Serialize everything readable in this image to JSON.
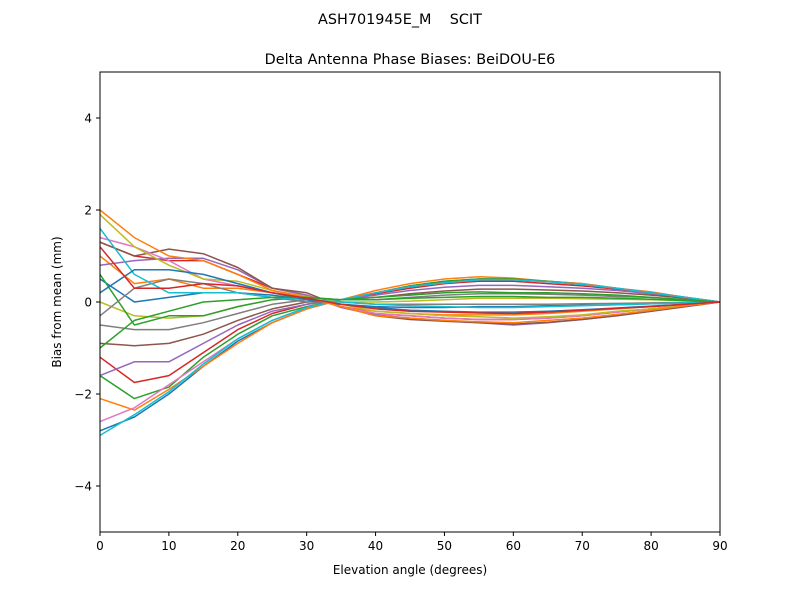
{
  "chart_data": {
    "type": "line",
    "suptitle": "ASH701945E_M    SCIT",
    "title": "Delta Antenna Phase Biases: BeiDOU-E6",
    "xlabel": "Elevation angle (degrees)",
    "ylabel": "Bias from mean (mm)",
    "xlim": [
      0,
      90
    ],
    "ylim": [
      -5,
      5
    ],
    "xticks": [
      0,
      10,
      20,
      30,
      40,
      50,
      60,
      70,
      80,
      90
    ],
    "yticks": [
      -4,
      -2,
      0,
      2,
      4
    ],
    "ytick_labels": [
      "−4",
      "−2",
      "0",
      "2",
      "4"
    ],
    "grid": false,
    "legend": "none",
    "colors": [
      "#1f77b4",
      "#ff7f0e",
      "#2ca02c",
      "#d62728",
      "#9467bd",
      "#8c564b",
      "#e377c2",
      "#7f7f7f",
      "#bcbd22",
      "#17becf"
    ],
    "x": [
      0,
      5,
      10,
      15,
      20,
      25,
      30,
      35,
      40,
      45,
      50,
      55,
      60,
      65,
      70,
      75,
      80,
      85,
      90
    ],
    "series": [
      {
        "values": [
          -2.8,
          -2.5,
          -2.0,
          -1.4,
          -0.85,
          -0.45,
          -0.15,
          0.05,
          0.2,
          0.35,
          0.45,
          0.5,
          0.5,
          0.45,
          0.4,
          0.3,
          0.2,
          0.1,
          0
        ]
      },
      {
        "values": [
          -2.1,
          -2.35,
          -1.9,
          -1.4,
          -0.9,
          -0.45,
          -0.15,
          0.05,
          0.25,
          0.4,
          0.5,
          0.55,
          0.52,
          0.45,
          0.4,
          0.3,
          0.22,
          0.1,
          0
        ]
      },
      {
        "values": [
          -1.6,
          -2.1,
          -1.85,
          -1.2,
          -0.7,
          -0.3,
          -0.1,
          0.05,
          0.2,
          0.35,
          0.45,
          0.5,
          0.5,
          0.45,
          0.38,
          0.3,
          0.2,
          0.1,
          0
        ]
      },
      {
        "values": [
          -1.2,
          -1.75,
          -1.6,
          -1.1,
          -0.6,
          -0.25,
          -0.05,
          0.05,
          0.18,
          0.3,
          0.4,
          0.45,
          0.45,
          0.4,
          0.35,
          0.28,
          0.2,
          0.1,
          0
        ]
      },
      {
        "values": [
          -1.6,
          -1.3,
          -1.3,
          -0.9,
          -0.5,
          -0.2,
          -0.05,
          0.05,
          0.15,
          0.25,
          0.32,
          0.36,
          0.36,
          0.33,
          0.3,
          0.25,
          0.18,
          0.09,
          0
        ]
      },
      {
        "values": [
          -0.9,
          -0.95,
          -0.9,
          -0.7,
          -0.4,
          -0.15,
          0.0,
          0.05,
          0.1,
          0.18,
          0.24,
          0.28,
          0.28,
          0.26,
          0.24,
          0.2,
          0.15,
          0.08,
          0
        ]
      },
      {
        "values": [
          -2.6,
          -2.3,
          -1.8,
          -1.3,
          -0.8,
          -0.4,
          -0.12,
          0.05,
          0.2,
          0.33,
          0.42,
          0.48,
          0.48,
          0.44,
          0.38,
          0.3,
          0.2,
          0.1,
          0
        ]
      },
      {
        "values": [
          -0.5,
          -0.6,
          -0.6,
          -0.45,
          -0.25,
          -0.05,
          0.05,
          0.05,
          0.05,
          0.1,
          0.15,
          0.18,
          0.18,
          0.17,
          0.15,
          0.12,
          0.1,
          0.05,
          0
        ]
      },
      {
        "values": [
          0.0,
          -0.3,
          -0.35,
          -0.3,
          -0.1,
          0.05,
          0.1,
          0.0,
          0.0,
          0.02,
          0.05,
          0.08,
          0.08,
          0.08,
          0.07,
          0.06,
          0.05,
          0.03,
          0
        ]
      },
      {
        "values": [
          -2.9,
          -2.45,
          -1.95,
          -1.35,
          -0.8,
          -0.4,
          -0.12,
          0.05,
          0.2,
          0.33,
          0.42,
          0.48,
          0.48,
          0.44,
          0.38,
          0.3,
          0.2,
          0.1,
          0
        ]
      },
      {
        "values": [
          0.5,
          0.0,
          0.1,
          0.2,
          0.2,
          0.15,
          0.05,
          -0.05,
          -0.1,
          -0.12,
          -0.12,
          -0.1,
          -0.1,
          -0.08,
          -0.07,
          -0.06,
          -0.04,
          -0.02,
          0
        ]
      },
      {
        "values": [
          1.0,
          0.4,
          0.5,
          0.3,
          0.3,
          0.2,
          0.1,
          -0.1,
          -0.2,
          -0.25,
          -0.28,
          -0.28,
          -0.28,
          -0.25,
          -0.2,
          -0.15,
          -0.1,
          -0.05,
          0
        ]
      },
      {
        "values": [
          0.6,
          -0.5,
          -0.3,
          -0.3,
          -0.1,
          0.05,
          0.1,
          0.05,
          0.1,
          0.15,
          0.2,
          0.22,
          0.2,
          0.2,
          0.18,
          0.15,
          0.1,
          0.05,
          0
        ]
      },
      {
        "values": [
          1.3,
          1.0,
          0.9,
          0.9,
          0.6,
          0.3,
          0.15,
          -0.1,
          -0.25,
          -0.3,
          -0.35,
          -0.38,
          -0.38,
          -0.35,
          -0.3,
          -0.22,
          -0.15,
          -0.07,
          0
        ]
      },
      {
        "values": [
          0.8,
          0.9,
          0.95,
          0.95,
          0.7,
          0.3,
          0.15,
          -0.12,
          -0.28,
          -0.35,
          -0.4,
          -0.45,
          -0.5,
          -0.45,
          -0.38,
          -0.3,
          -0.2,
          -0.1,
          0
        ]
      },
      {
        "values": [
          1.3,
          1.0,
          1.15,
          1.05,
          0.75,
          0.3,
          0.2,
          -0.1,
          -0.3,
          -0.38,
          -0.42,
          -0.45,
          -0.48,
          -0.44,
          -0.38,
          -0.3,
          -0.2,
          -0.1,
          0
        ]
      },
      {
        "values": [
          1.4,
          1.2,
          0.9,
          0.5,
          0.35,
          0.2,
          0.1,
          -0.1,
          -0.25,
          -0.3,
          -0.35,
          -0.38,
          -0.38,
          -0.35,
          -0.3,
          -0.22,
          -0.15,
          -0.07,
          0
        ]
      },
      {
        "values": [
          -0.3,
          0.3,
          0.5,
          0.4,
          0.2,
          0.1,
          0.0,
          0.0,
          -0.05,
          -0.05,
          -0.05,
          -0.05,
          -0.05,
          -0.05,
          -0.04,
          -0.03,
          -0.02,
          -0.01,
          0
        ]
      },
      {
        "values": [
          1.9,
          1.2,
          0.8,
          0.5,
          0.45,
          0.25,
          0.12,
          -0.05,
          -0.2,
          -0.25,
          -0.3,
          -0.32,
          -0.35,
          -0.32,
          -0.28,
          -0.2,
          -0.15,
          -0.07,
          0
        ]
      },
      {
        "values": [
          1.6,
          0.6,
          0.2,
          0.2,
          0.2,
          0.1,
          0.05,
          0.0,
          -0.05,
          -0.08,
          -0.1,
          -0.12,
          -0.12,
          -0.1,
          -0.08,
          -0.06,
          -0.04,
          -0.02,
          0
        ]
      },
      {
        "values": [
          0.2,
          0.7,
          0.7,
          0.6,
          0.4,
          0.2,
          0.05,
          -0.05,
          -0.12,
          -0.18,
          -0.2,
          -0.22,
          -0.22,
          -0.2,
          -0.17,
          -0.13,
          -0.09,
          -0.05,
          0
        ]
      },
      {
        "values": [
          2.0,
          1.4,
          1.0,
          0.9,
          0.6,
          0.25,
          0.1,
          -0.1,
          -0.3,
          -0.35,
          -0.4,
          -0.43,
          -0.45,
          -0.4,
          -0.35,
          -0.27,
          -0.18,
          -0.08,
          0
        ]
      },
      {
        "values": [
          -1.0,
          -0.4,
          -0.2,
          0.0,
          0.05,
          0.1,
          0.1,
          0.05,
          0.05,
          0.08,
          0.1,
          0.12,
          0.12,
          0.1,
          0.1,
          0.08,
          0.06,
          0.03,
          0
        ]
      },
      {
        "values": [
          1.2,
          0.3,
          0.3,
          0.4,
          0.35,
          0.2,
          0.08,
          -0.05,
          -0.15,
          -0.2,
          -0.22,
          -0.24,
          -0.25,
          -0.22,
          -0.18,
          -0.14,
          -0.1,
          -0.05,
          0
        ]
      }
    ]
  }
}
